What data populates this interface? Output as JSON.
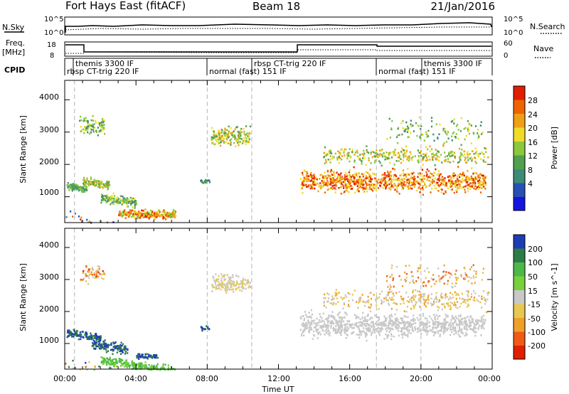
{
  "header": {
    "station": "Fort Hays East (fitACF)",
    "beam": "Beam 18",
    "date": "21/Jan/2016"
  },
  "labels": {
    "nsky": "N.Sky",
    "nsearch": "N.Search",
    "freq": "Freq.",
    "freq_unit": "[MHz]",
    "nave": "Nave",
    "cpid": "CPID",
    "nsky_ticks": [
      "10^5",
      "10^0"
    ],
    "nsearch_ticks": [
      "10^5",
      "10^0"
    ],
    "freq_ticks": [
      "18",
      "8"
    ],
    "nave_ticks": [
      "60",
      "0"
    ]
  },
  "cpid_segments": [
    {
      "label": "themis 3300 IF",
      "row": 0
    },
    {
      "label": "rbsp CT-trig 220 IF",
      "row": 1
    },
    {
      "label": "normal (fast) 151 IF",
      "row": 1
    },
    {
      "label": "rbsp CT-trig 220 IF",
      "row": 0
    },
    {
      "label": "normal (fast) 151 IF",
      "row": 1
    },
    {
      "label": "themis 3300 IF",
      "row": 0
    }
  ],
  "colors": {
    "power": [
      "#1414e0",
      "#2850b4",
      "#3c8c78",
      "#50a050",
      "#8cc83c",
      "#f0dc28",
      "#f0a014",
      "#f06400",
      "#e01e00"
    ],
    "velocity": [
      "#1e3cb4",
      "#2c7c48",
      "#4cb848",
      "#78d03c",
      "#c8c8c8",
      "#e8c850",
      "#f0a028",
      "#f05a14",
      "#e01e00"
    ]
  },
  "chart_data": [
    {
      "type": "heatmap",
      "ylabel": "Slant Range [km]",
      "xlim": [
        "00:00",
        "00:00"
      ],
      "ylim": [
        200,
        4600
      ],
      "yticks": [
        "1000",
        "2000",
        "3000",
        "4000"
      ],
      "colorbar": {
        "label": "Power [dB]",
        "ticks": [
          "28",
          "24",
          "20",
          "16",
          "12",
          "8",
          "4"
        ]
      }
    },
    {
      "type": "heatmap",
      "ylabel": "Slant Range [km]",
      "xlabel": "Time UT",
      "xticks": [
        "00:00",
        "04:00",
        "08:00",
        "12:00",
        "16:00",
        "20:00",
        "00:00"
      ],
      "xlim": [
        "00:00",
        "00:00"
      ],
      "ylim": [
        200,
        4600
      ],
      "yticks": [
        "1000",
        "2000",
        "3000",
        "4000"
      ],
      "colorbar": {
        "label": "Velocity [m s^-1]",
        "ticks": [
          "200",
          "100",
          "50",
          "15",
          "-15",
          "-50",
          "-100",
          "-200"
        ]
      }
    }
  ]
}
